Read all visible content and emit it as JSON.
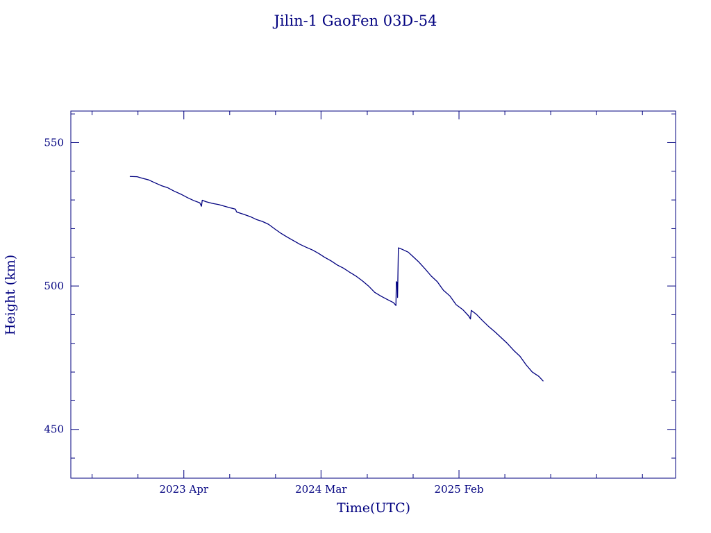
{
  "chart_data": {
    "type": "line",
    "title": "Jilin-1 GaoFen 03D-54",
    "xlabel": "Time(UTC)",
    "ylabel": "Height (km)",
    "color": "#00007f",
    "background": "#ffffff",
    "grid": false,
    "legend": "none",
    "xlim": [
      "2022-06-29",
      "2026-07-15"
    ],
    "ylim": [
      433,
      561
    ],
    "x_ticks": [
      {
        "label": "2023 Apr",
        "value": "2023-04-01"
      },
      {
        "label": "2024 Mar",
        "value": "2024-03-01"
      },
      {
        "label": "2025 Feb",
        "value": "2025-02-01"
      }
    ],
    "y_ticks": [
      {
        "label": "450",
        "value": 450
      },
      {
        "label": "500",
        "value": 500
      },
      {
        "label": "550",
        "value": 550
      }
    ],
    "series": [
      {
        "name": "",
        "points": [
          [
            "2022-11-20",
            538.2
          ],
          [
            "2022-12-08",
            538.1
          ],
          [
            "2022-12-20",
            537.6
          ],
          [
            "2023-01-05",
            537.0
          ],
          [
            "2023-01-20",
            536.0
          ],
          [
            "2023-02-05",
            535.0
          ],
          [
            "2023-02-20",
            534.3
          ],
          [
            "2023-03-08",
            533.1
          ],
          [
            "2023-03-25",
            532.0
          ],
          [
            "2023-04-10",
            530.8
          ],
          [
            "2023-04-25",
            529.8
          ],
          [
            "2023-05-10",
            529.0
          ],
          [
            "2023-05-14",
            527.8
          ],
          [
            "2023-05-16",
            529.9
          ],
          [
            "2023-05-25",
            529.4
          ],
          [
            "2023-06-10",
            528.8
          ],
          [
            "2023-06-25",
            528.4
          ],
          [
            "2023-07-10",
            527.8
          ],
          [
            "2023-07-25",
            527.2
          ],
          [
            "2023-08-05",
            526.8
          ],
          [
            "2023-08-08",
            525.8
          ],
          [
            "2023-08-25",
            525.0
          ],
          [
            "2023-09-10",
            524.2
          ],
          [
            "2023-09-25",
            523.2
          ],
          [
            "2023-10-10",
            522.5
          ],
          [
            "2023-10-25",
            521.5
          ],
          [
            "2023-11-10",
            519.8
          ],
          [
            "2023-11-25",
            518.3
          ],
          [
            "2023-12-10",
            517.0
          ],
          [
            "2023-12-25",
            515.8
          ],
          [
            "2024-01-10",
            514.5
          ],
          [
            "2024-01-25",
            513.5
          ],
          [
            "2024-02-10",
            512.5
          ],
          [
            "2024-02-25",
            511.3
          ],
          [
            "2024-03-10",
            510.0
          ],
          [
            "2024-03-25",
            508.8
          ],
          [
            "2024-04-10",
            507.3
          ],
          [
            "2024-04-25",
            506.2
          ],
          [
            "2024-05-10",
            504.8
          ],
          [
            "2024-05-25",
            503.5
          ],
          [
            "2024-06-10",
            501.8
          ],
          [
            "2024-06-25",
            500.0
          ],
          [
            "2024-07-10",
            497.8
          ],
          [
            "2024-07-25",
            496.5
          ],
          [
            "2024-08-10",
            495.3
          ],
          [
            "2024-08-25",
            494.2
          ],
          [
            "2024-08-31",
            493.2
          ],
          [
            "2024-09-01",
            501.5
          ],
          [
            "2024-09-03",
            501.3
          ],
          [
            "2024-09-04",
            496.0
          ],
          [
            "2024-09-05",
            505.0
          ],
          [
            "2024-09-06",
            513.3
          ],
          [
            "2024-09-15",
            512.8
          ],
          [
            "2024-09-30",
            511.8
          ],
          [
            "2024-10-10",
            510.5
          ],
          [
            "2024-10-25",
            508.5
          ],
          [
            "2024-11-10",
            506.0
          ],
          [
            "2024-11-25",
            503.5
          ],
          [
            "2024-12-10",
            501.5
          ],
          [
            "2024-12-25",
            498.5
          ],
          [
            "2025-01-10",
            496.5
          ],
          [
            "2025-01-25",
            493.5
          ],
          [
            "2025-02-10",
            491.8
          ],
          [
            "2025-02-25",
            489.5
          ],
          [
            "2025-03-01",
            488.5
          ],
          [
            "2025-03-03",
            491.5
          ],
          [
            "2025-03-15",
            490.2
          ],
          [
            "2025-03-30",
            488.0
          ],
          [
            "2025-04-15",
            485.8
          ],
          [
            "2025-04-30",
            484.0
          ],
          [
            "2025-05-15",
            482.0
          ],
          [
            "2025-05-30",
            480.0
          ],
          [
            "2025-06-15",
            477.5
          ],
          [
            "2025-06-30",
            475.5
          ],
          [
            "2025-07-15",
            472.5
          ],
          [
            "2025-07-30",
            470.0
          ],
          [
            "2025-08-15",
            468.5
          ],
          [
            "2025-08-26",
            466.8
          ]
        ]
      }
    ]
  }
}
